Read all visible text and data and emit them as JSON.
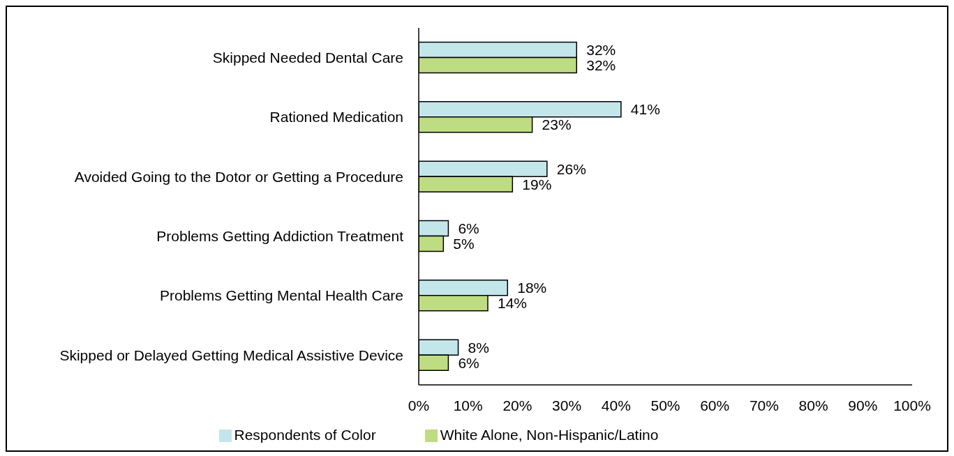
{
  "chart_data": {
    "type": "bar",
    "orientation": "horizontal",
    "categories": [
      "Skipped Needed Dental Care",
      "Rationed Medication",
      "Avoided Going to the Dotor or Getting a Procedure",
      "Problems Getting Addiction Treatment",
      "Problems Getting Mental Health Care",
      "Skipped or Delayed Getting Medical Assistive Device"
    ],
    "series": [
      {
        "name": "Respondents of Color",
        "color": "#c3e6eb",
        "values": [
          32,
          41,
          26,
          6,
          18,
          8
        ],
        "value_labels": [
          "32%",
          "41%",
          "26%",
          "6%",
          "18%",
          "8%"
        ]
      },
      {
        "name": "White Alone, Non-Hispanic/Latino",
        "color": "#bedc82",
        "values": [
          32,
          23,
          19,
          5,
          14,
          6
        ],
        "value_labels": [
          "32%",
          "23%",
          "19%",
          "5%",
          "14%",
          "6%"
        ]
      }
    ],
    "xlim": [
      0,
      100
    ],
    "xticks": [
      {
        "value": 0,
        "label": "0%"
      },
      {
        "value": 10,
        "label": "10%"
      },
      {
        "value": 20,
        "label": "20%"
      },
      {
        "value": 30,
        "label": "30%"
      },
      {
        "value": 40,
        "label": "40%"
      },
      {
        "value": 50,
        "label": "50%"
      },
      {
        "value": 60,
        "label": "60%"
      },
      {
        "value": 70,
        "label": "70%"
      },
      {
        "value": 80,
        "label": "80%"
      },
      {
        "value": 90,
        "label": "90%"
      },
      {
        "value": 100,
        "label": "100%"
      }
    ],
    "grid": false,
    "legend": "bottom"
  }
}
